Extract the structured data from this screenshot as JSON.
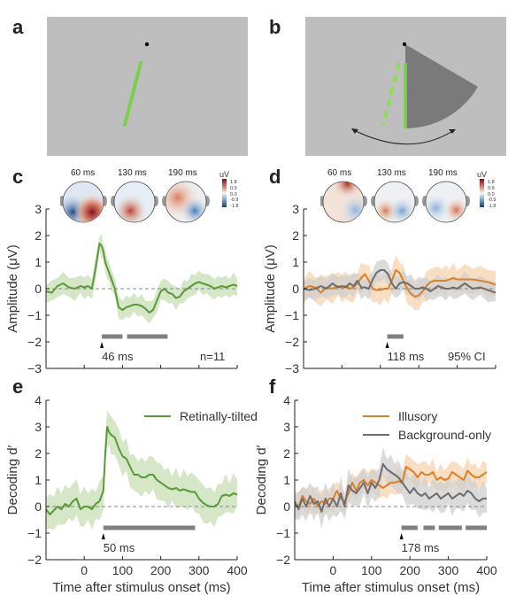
{
  "panel_labels": [
    "a",
    "b",
    "c",
    "d",
    "e",
    "f"
  ],
  "colors": {
    "stim_bg": "#bebebe",
    "green_line": "#6cbf3c",
    "green": "#5a9a3a",
    "green_band": "#c7dfb4",
    "orange": "#d9822b",
    "orange_band": "#f5d3ae",
    "gray": "#6e6e6e",
    "gray_band": "#cfcfcf",
    "sig_bar": "#808080",
    "wedge": "#7a7a7a"
  },
  "topomaps": {
    "unit": "uV",
    "colorbar_ticks": [
      "1.8",
      "0.9",
      "0.0",
      "-0.9",
      "-1.8"
    ],
    "c_times": [
      "60 ms",
      "130 ms",
      "190 ms"
    ],
    "d_times": [
      "60 ms",
      "130 ms",
      "190 ms"
    ]
  },
  "chart_data": [
    {
      "id": "c",
      "type": "line",
      "ylabel": "Amplitude (μV)",
      "xlabel": "",
      "xlim": [
        -100,
        400
      ],
      "ylim": [
        -3,
        3
      ],
      "yticks": [
        3,
        2,
        1,
        0,
        -1,
        -2,
        -3
      ],
      "xticks": [
        -100,
        0,
        100,
        200,
        300,
        400
      ],
      "show_xticklabels": false,
      "annotations": {
        "onset": "46 ms",
        "n": "n=11"
      },
      "onset_ms": 46,
      "sig_bars": [
        [
          46,
          100
        ],
        [
          112,
          218
        ]
      ],
      "series": [
        {
          "name": "Retinally-tilted",
          "color": "green",
          "x": [
            -100,
            -85,
            -70,
            -55,
            -40,
            -25,
            -10,
            0,
            10,
            20,
            30,
            40,
            46,
            50,
            55,
            60,
            65,
            70,
            80,
            90,
            100,
            110,
            120,
            130,
            140,
            150,
            160,
            170,
            180,
            190,
            200,
            210,
            220,
            230,
            240,
            250,
            260,
            270,
            280,
            290,
            300,
            310,
            320,
            330,
            340,
            350,
            360,
            370,
            380,
            390,
            400
          ],
          "y": [
            -0.1,
            -0.15,
            0.1,
            0.2,
            0.05,
            0.0,
            0.1,
            0.05,
            0.1,
            0.0,
            0.8,
            1.7,
            1.6,
            1.4,
            1.0,
            0.8,
            0.6,
            0.4,
            0.0,
            -0.7,
            -0.8,
            -0.7,
            -0.65,
            -0.6,
            -0.6,
            -0.65,
            -0.75,
            -0.9,
            -0.8,
            -0.45,
            -0.1,
            0.0,
            -0.15,
            -0.2,
            -0.35,
            -0.3,
            -0.1,
            0.0,
            0.1,
            0.2,
            0.25,
            0.2,
            0.15,
            0.1,
            0.0,
            0.05,
            0.1,
            0.05,
            0.1,
            0.15,
            0.1
          ],
          "ci": 0.35
        }
      ]
    },
    {
      "id": "d",
      "type": "line",
      "ylabel": "Amplitude (μV)",
      "xlim": [
        -100,
        400
      ],
      "ylim": [
        -3,
        3
      ],
      "yticks": [
        3,
        2,
        1,
        0,
        -1,
        -2,
        -3
      ],
      "xticks": [
        -100,
        0,
        100,
        200,
        300,
        400
      ],
      "show_xticklabels": false,
      "annotations": {
        "onset": "118 ms",
        "ci": "95% CI"
      },
      "onset_ms": 118,
      "sig_bars": [
        [
          118,
          160
        ]
      ],
      "series": [
        {
          "name": "Illusory",
          "color": "orange",
          "x": [
            -100,
            -85,
            -70,
            -55,
            -40,
            -25,
            -10,
            0,
            10,
            20,
            30,
            40,
            50,
            60,
            70,
            80,
            90,
            100,
            110,
            120,
            130,
            140,
            150,
            160,
            170,
            180,
            190,
            200,
            210,
            220,
            230,
            240,
            250,
            260,
            270,
            280,
            290,
            300,
            320,
            340,
            360,
            380,
            400
          ],
          "y": [
            0.0,
            0.1,
            0.05,
            -0.15,
            0.05,
            0.0,
            0.1,
            0.05,
            0.1,
            0.0,
            0.05,
            0.2,
            0.4,
            0.55,
            0.3,
            0.0,
            -0.05,
            -0.05,
            0.0,
            0.0,
            0.3,
            0.7,
            0.6,
            0.3,
            0.0,
            -0.2,
            -0.3,
            -0.25,
            -0.1,
            0.1,
            0.25,
            0.3,
            0.3,
            0.3,
            0.3,
            0.35,
            0.4,
            0.35,
            0.35,
            0.35,
            0.3,
            0.25,
            0.15
          ],
          "ci": 0.45
        },
        {
          "name": "Background-only",
          "color": "gray",
          "x": [
            -100,
            -85,
            -70,
            -55,
            -40,
            -25,
            -10,
            0,
            10,
            20,
            30,
            40,
            50,
            60,
            70,
            80,
            90,
            100,
            110,
            120,
            130,
            140,
            150,
            160,
            170,
            180,
            190,
            200,
            210,
            220,
            230,
            240,
            250,
            260,
            270,
            280,
            290,
            300,
            320,
            340,
            360,
            380,
            400
          ],
          "y": [
            0.0,
            -0.05,
            0.0,
            0.1,
            0.0,
            0.2,
            0.05,
            0.1,
            0.05,
            0.2,
            0.1,
            0.3,
            0.05,
            0.05,
            0.0,
            0.35,
            0.6,
            0.7,
            0.7,
            0.55,
            0.2,
            0.0,
            0.2,
            0.25,
            0.2,
            0.1,
            0.0,
            0.0,
            0.05,
            0.0,
            -0.1,
            0.0,
            0.1,
            0.05,
            0.0,
            0.0,
            0.05,
            0.0,
            0.2,
            0.0,
            0.05,
            -0.05,
            -0.15
          ],
          "ci": 0.35
        }
      ]
    },
    {
      "id": "e",
      "type": "line",
      "ylabel": "Decoding d′",
      "xlabel": "Time after stimulus onset (ms)",
      "xlim": [
        -100,
        400
      ],
      "ylim": [
        -2,
        4
      ],
      "yticks": [
        4,
        3,
        2,
        1,
        0,
        -1,
        -2
      ],
      "xticks": [
        -100,
        0,
        100,
        200,
        300,
        400
      ],
      "xticklabels": [
        "",
        "0",
        "100",
        "200",
        "300",
        "400"
      ],
      "show_xticklabels": true,
      "legend": {
        "entries": [
          "Retinally-tilted"
        ],
        "placement": "top-right"
      },
      "annotations": {
        "onset": "50 ms"
      },
      "onset_ms": 50,
      "sig_bars": [
        [
          50,
          290
        ]
      ],
      "series": [
        {
          "name": "Retinally-tilted",
          "color": "green",
          "x": [
            -100,
            -90,
            -80,
            -70,
            -60,
            -50,
            -40,
            -30,
            -20,
            -10,
            0,
            10,
            20,
            30,
            40,
            50,
            55,
            60,
            65,
            70,
            80,
            90,
            100,
            110,
            120,
            130,
            140,
            150,
            160,
            170,
            180,
            190,
            200,
            210,
            220,
            230,
            240,
            250,
            260,
            270,
            280,
            290,
            300,
            310,
            320,
            330,
            340,
            350,
            360,
            370,
            380,
            390,
            400
          ],
          "y": [
            -0.1,
            -0.3,
            -0.15,
            0.0,
            -0.1,
            0.1,
            0.0,
            0.2,
            0.3,
            -0.1,
            0.0,
            0.0,
            -0.1,
            0.1,
            0.2,
            0.6,
            2.0,
            3.0,
            2.8,
            2.7,
            2.6,
            2.2,
            1.9,
            1.8,
            1.5,
            1.2,
            1.2,
            1.1,
            1.1,
            1.2,
            1.2,
            1.0,
            0.9,
            0.8,
            0.7,
            0.65,
            0.7,
            0.6,
            0.65,
            0.6,
            0.55,
            0.55,
            0.3,
            0.15,
            0.05,
            0.0,
            0.0,
            0.1,
            0.4,
            0.45,
            0.4,
            0.5,
            0.45
          ],
          "ci": 0.6
        }
      ]
    },
    {
      "id": "f",
      "type": "line",
      "ylabel": "Decoding d′",
      "xlabel": "Time after stimulus onset (ms)",
      "xlim": [
        -100,
        400
      ],
      "ylim": [
        -2,
        4
      ],
      "yticks": [
        4,
        3,
        2,
        1,
        0,
        -1,
        -2
      ],
      "xticks": [
        -100,
        0,
        100,
        200,
        300,
        400
      ],
      "xticklabels": [
        "",
        "0",
        "100",
        "200",
        "300",
        "400"
      ],
      "show_xticklabels": true,
      "legend": {
        "entries": [
          "Illusory",
          "Background-only"
        ],
        "placement": "top-right"
      },
      "annotations": {
        "onset": "178 ms"
      },
      "onset_ms": 178,
      "sig_bars": [
        [
          178,
          220
        ],
        [
          235,
          265
        ],
        [
          275,
          335
        ],
        [
          345,
          400
        ]
      ],
      "series": [
        {
          "name": "Illusory",
          "color": "orange",
          "x": [
            -100,
            -90,
            -80,
            -70,
            -60,
            -50,
            -40,
            -30,
            -20,
            -10,
            0,
            10,
            20,
            30,
            40,
            50,
            60,
            70,
            80,
            90,
            100,
            110,
            120,
            130,
            140,
            150,
            160,
            170,
            180,
            190,
            200,
            210,
            220,
            230,
            240,
            250,
            260,
            270,
            280,
            290,
            300,
            310,
            320,
            330,
            340,
            350,
            360,
            370,
            380,
            390,
            400
          ],
          "y": [
            0.1,
            0.0,
            0.4,
            0.2,
            0.1,
            0.3,
            0.0,
            0.2,
            0.1,
            0.3,
            0.3,
            0.6,
            0.3,
            0.2,
            0.5,
            0.9,
            0.6,
            0.9,
            1.0,
            0.8,
            1.0,
            0.9,
            0.8,
            0.7,
            0.8,
            0.9,
            0.9,
            0.95,
            0.9,
            1.5,
            1.4,
            1.3,
            1.1,
            1.3,
            1.2,
            1.2,
            1.3,
            1.0,
            1.1,
            1.0,
            1.05,
            1.3,
            1.2,
            1.1,
            1.0,
            1.35,
            1.2,
            1.1,
            1.1,
            1.2,
            1.3
          ],
          "ci": 0.4
        },
        {
          "name": "Background-only",
          "color": "gray",
          "x": [
            -100,
            -90,
            -80,
            -70,
            -60,
            -50,
            -40,
            -30,
            -20,
            -10,
            0,
            10,
            20,
            30,
            40,
            50,
            60,
            70,
            80,
            90,
            100,
            110,
            120,
            130,
            140,
            150,
            160,
            170,
            180,
            190,
            200,
            210,
            220,
            230,
            240,
            250,
            260,
            270,
            280,
            290,
            300,
            310,
            320,
            330,
            340,
            350,
            360,
            370,
            380,
            390,
            400
          ],
          "y": [
            0.2,
            -0.1,
            0.3,
            0.0,
            0.4,
            0.1,
            0.2,
            -0.2,
            0.3,
            0.0,
            0.3,
            0.0,
            0.5,
            0.0,
            0.8,
            0.6,
            0.5,
            0.7,
            0.9,
            0.5,
            0.9,
            0.7,
            1.0,
            1.6,
            1.4,
            1.3,
            1.2,
            1.1,
            0.9,
            0.7,
            0.5,
            0.7,
            0.5,
            0.4,
            0.5,
            0.3,
            0.4,
            0.5,
            0.3,
            0.4,
            0.5,
            0.3,
            0.4,
            0.5,
            0.4,
            0.6,
            0.5,
            0.3,
            0.2,
            0.3,
            0.3
          ],
          "ci": 0.5
        }
      ]
    }
  ]
}
